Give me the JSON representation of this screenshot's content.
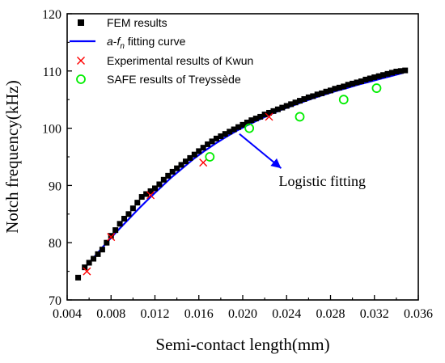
{
  "chart_data": {
    "type": "scatter",
    "title": "",
    "xlabel": "Semi-contact length(mm)",
    "ylabel": "Notch frequency(kHz)",
    "xlim": [
      0.004,
      0.036
    ],
    "ylim": [
      70,
      120
    ],
    "x_ticks": [
      0.004,
      0.008,
      0.012,
      0.016,
      0.02,
      0.024,
      0.028,
      0.032,
      0.036
    ],
    "x_tick_labels": [
      "0.004",
      "0.008",
      "0.012",
      "0.016",
      "0.020",
      "0.024",
      "0.028",
      "0.032",
      "0.036"
    ],
    "y_ticks": [
      70,
      80,
      90,
      100,
      110,
      120
    ],
    "y_tick_labels": [
      "70",
      "80",
      "90",
      "100",
      "110",
      "120"
    ],
    "grid": false,
    "legend_position": "top-left",
    "legend_ylabel_italic_prefix": "a",
    "legend_ylabel_italic_sub": "n",
    "series": [
      {
        "name": "FEM results",
        "marker": "square",
        "color": "#000000",
        "x": [
          0.005,
          0.0056,
          0.006,
          0.0064,
          0.0068,
          0.0072,
          0.0076,
          0.008,
          0.0084,
          0.0088,
          0.0092,
          0.0096,
          0.01,
          0.0104,
          0.0108,
          0.0112,
          0.0116,
          0.012,
          0.0124,
          0.0128,
          0.0132,
          0.0136,
          0.014,
          0.0144,
          0.0148,
          0.0152,
          0.0156,
          0.016,
          0.0164,
          0.0168,
          0.0172,
          0.0176,
          0.018,
          0.0184,
          0.0188,
          0.0192,
          0.0196,
          0.02,
          0.0204,
          0.0208,
          0.0212,
          0.0216,
          0.022,
          0.0224,
          0.0228,
          0.0232,
          0.0236,
          0.024,
          0.0244,
          0.0248,
          0.0252,
          0.0256,
          0.026,
          0.0264,
          0.0268,
          0.0272,
          0.0276,
          0.028,
          0.0284,
          0.0288,
          0.0292,
          0.0296,
          0.03,
          0.0304,
          0.0308,
          0.0312,
          0.0316,
          0.032,
          0.0324,
          0.0328,
          0.0332,
          0.0336,
          0.034,
          0.0344,
          0.0348
        ],
        "y": [
          73.9,
          75.7,
          76.5,
          77.2,
          78.0,
          78.8,
          80.0,
          81.2,
          82.2,
          83.3,
          84.2,
          85.0,
          86.0,
          87.0,
          88.0,
          88.5,
          89.0,
          89.5,
          90.2,
          91.0,
          91.7,
          92.4,
          93.0,
          93.6,
          94.2,
          94.8,
          95.4,
          96.0,
          96.6,
          97.2,
          97.7,
          98.2,
          98.6,
          99.0,
          99.4,
          99.8,
          100.2,
          100.6,
          101.0,
          101.4,
          101.7,
          102.0,
          102.4,
          102.7,
          103.0,
          103.3,
          103.6,
          103.9,
          104.2,
          104.5,
          104.8,
          105.1,
          105.4,
          105.6,
          105.9,
          106.1,
          106.4,
          106.6,
          106.9,
          107.1,
          107.3,
          107.6,
          107.8,
          108.0,
          108.2,
          108.5,
          108.7,
          108.9,
          109.1,
          109.3,
          109.5,
          109.7,
          109.9,
          110.0,
          110.1
        ]
      },
      {
        "name": "fitting curve",
        "marker": "line",
        "color": "#0000ff",
        "x": [
          0.0056,
          0.0065,
          0.0075,
          0.0085,
          0.0095,
          0.0105,
          0.0115,
          0.0125,
          0.0135,
          0.0145,
          0.0155,
          0.0165,
          0.0175,
          0.0185,
          0.0195,
          0.0205,
          0.0215,
          0.0225,
          0.0235,
          0.0245,
          0.0255,
          0.0265,
          0.0275,
          0.0285,
          0.0295,
          0.0305,
          0.0315,
          0.0325,
          0.0335,
          0.0345,
          0.0348
        ],
        "y": [
          75.6,
          77.6,
          79.8,
          81.9,
          83.9,
          85.9,
          87.8,
          89.6,
          91.4,
          93.0,
          94.6,
          96.0,
          97.3,
          98.5,
          99.6,
          100.6,
          101.5,
          102.4,
          103.2,
          103.9,
          104.6,
          105.3,
          105.9,
          106.5,
          107.0,
          107.6,
          108.1,
          108.6,
          109.1,
          109.6,
          109.8
        ]
      },
      {
        "name": "Experimental results of Kwun",
        "marker": "x",
        "color": "#ff0000",
        "x": [
          0.0058,
          0.008,
          0.0116,
          0.0164,
          0.0224
        ],
        "y": [
          75.0,
          81.0,
          88.3,
          94.0,
          102.0
        ]
      },
      {
        "name": "SAFE results of Treyssède",
        "marker": "circle",
        "color": "#00ee00",
        "x": [
          0.017,
          0.0206,
          0.0252,
          0.0292,
          0.0322
        ],
        "y": [
          95.0,
          100.0,
          102.0,
          105.0,
          107.0
        ]
      }
    ],
    "annotations": [
      {
        "text": "Logistic fitting",
        "arrow_from": [
          0.0235,
          93.0
        ],
        "arrow_to": [
          0.0197,
          99.0
        ],
        "color": "#0000ff"
      }
    ]
  }
}
